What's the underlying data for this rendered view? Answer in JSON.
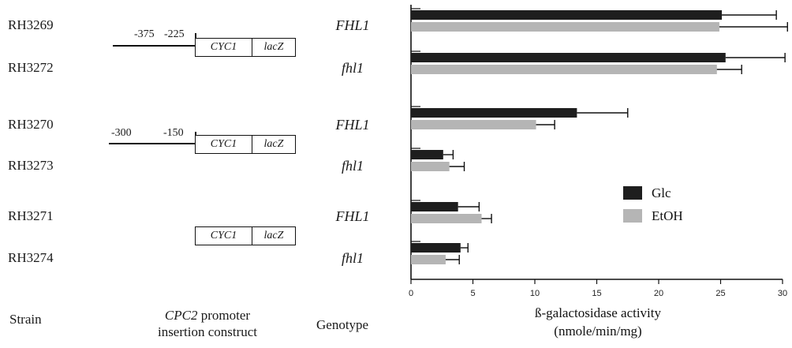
{
  "chart_data": {
    "type": "bar",
    "orientation": "horizontal",
    "categories": [
      "RH3269",
      "RH3272",
      "RH3270",
      "RH3273",
      "RH3271",
      "RH3274"
    ],
    "genotypes": [
      "FHL1",
      "fhl1",
      "FHL1",
      "fhl1",
      "FHL1",
      "fhl1"
    ],
    "series": [
      {
        "name": "Glc",
        "color": "#1e1e1e",
        "values": [
          25.1,
          25.4,
          13.4,
          2.6,
          3.8,
          4.0
        ],
        "errors": [
          4.4,
          4.8,
          4.1,
          0.8,
          1.7,
          0.6
        ]
      },
      {
        "name": "EtOH",
        "color": "#b5b5b5",
        "values": [
          24.9,
          24.7,
          10.1,
          3.1,
          5.7,
          2.8
        ],
        "errors": [
          5.5,
          2.0,
          1.5,
          1.2,
          0.8,
          1.1
        ]
      }
    ],
    "xlim": [
      0,
      30
    ],
    "xticks": [
      "0",
      "5",
      "10",
      "15",
      "20",
      "25",
      "30"
    ],
    "xlabel_line1": "ß-galactosidase activity",
    "xlabel_line2": "(nmole/min/mg)",
    "legend_position": "right, lower middle"
  },
  "headers": {
    "strain": "Strain",
    "construct_line1": "CPC2 promoter",
    "construct_line1_italic": "CPC2",
    "construct_line1_rest": " promoter",
    "construct_line2": "insertion construct",
    "genotype": "Genotype"
  },
  "constructs": [
    {
      "left_coord": "-375",
      "right_coord": "-225",
      "part1": "CYC1",
      "part2": "lacZ"
    },
    {
      "left_coord": "-300",
      "right_coord": "-150",
      "part1": "CYC1",
      "part2": "lacZ"
    },
    {
      "part1": "CYC1",
      "part2": "lacZ"
    }
  ]
}
